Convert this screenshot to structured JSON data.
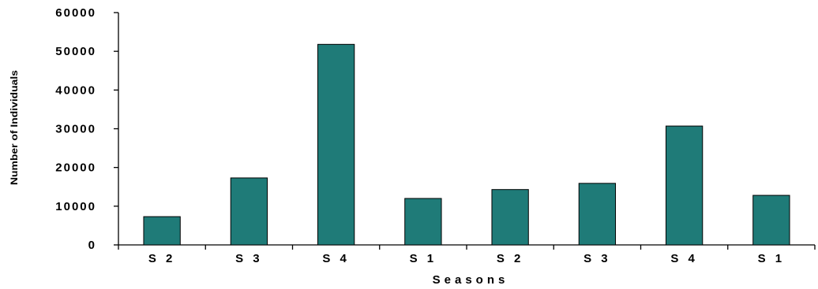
{
  "chart_data": {
    "type": "bar",
    "title": "",
    "xlabel": "Seasons",
    "ylabel": "Number of Individuals",
    "categories": [
      "S2",
      "S3",
      "S4",
      "S1",
      "S2",
      "S3",
      "S4",
      "S1"
    ],
    "category_labels": [
      "S 2",
      "S 3",
      "S 4",
      "S 1",
      "S 2",
      "S 3",
      "S 4",
      "S 1"
    ],
    "values": [
      7300,
      17300,
      51800,
      12000,
      14300,
      15900,
      30700,
      12800
    ],
    "ylim": [
      0,
      60000
    ],
    "yticks": [
      0,
      10000,
      20000,
      30000,
      40000,
      50000,
      60000
    ],
    "grid": false,
    "legend": "none",
    "bar_color": "#1f7b78",
    "bar_edge_color": "#000000"
  }
}
